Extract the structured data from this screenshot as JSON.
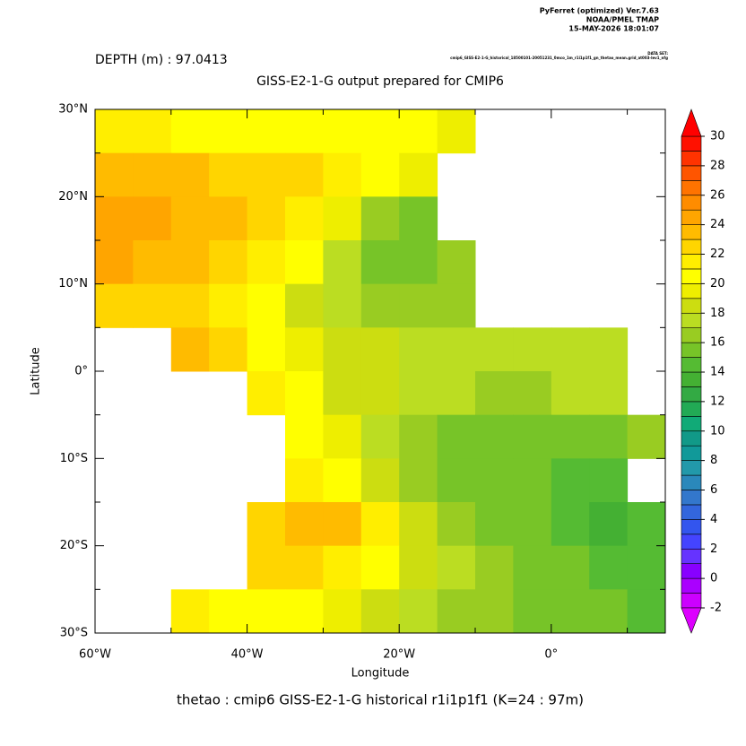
{
  "header": {
    "software": "PyFerret (optimized) Ver.7.63",
    "org": "NOAA/PMEL TMAP",
    "date": "15-MAY-2026 18:01:07",
    "depth": "DEPTH (m) : 97.0413",
    "dataset_label": "DATA SET:",
    "dataset": "cmip6_GISS-E2-1-G_historical_18500101-20051231_0mco_1m_r1i1p1f1_gn_thetao_mean.grid_at003-lev1_nfg"
  },
  "chart_data": {
    "type": "heatmap",
    "title": "GISS-E2-1-G output prepared for CMIP6",
    "xlabel": "Longitude",
    "ylabel": "Latitude",
    "footer": "thetao : cmip6 GISS-E2-1-G historical r1i1p1f1   (K=24 : 97m)",
    "xlim": [
      -60,
      15
    ],
    "ylim": [
      -30,
      30
    ],
    "xticks": [
      {
        "value": -60,
        "label": "60°W"
      },
      {
        "value": -40,
        "label": "40°W"
      },
      {
        "value": -20,
        "label": "20°W"
      },
      {
        "value": 0,
        "label": "0°"
      }
    ],
    "xminor": [
      -50,
      -30,
      -10,
      10
    ],
    "yticks": [
      {
        "value": 30,
        "label": "30°N"
      },
      {
        "value": 20,
        "label": "20°N"
      },
      {
        "value": 10,
        "label": "10°N"
      },
      {
        "value": 0,
        "label": "0°"
      },
      {
        "value": -10,
        "label": "10°S"
      },
      {
        "value": -20,
        "label": "20°S"
      },
      {
        "value": -30,
        "label": "30°S"
      }
    ],
    "yminor": [
      25,
      15,
      5,
      -5,
      -15,
      -25
    ],
    "lon_edges": [
      -60,
      -55,
      -50,
      -45,
      -40,
      -35,
      -30,
      -25,
      -20,
      -15,
      -10,
      -5,
      0,
      5,
      10,
      15
    ],
    "lat_edges": [
      30,
      25,
      20,
      15,
      10,
      5,
      0,
      -5,
      -10,
      -15,
      -20,
      -25,
      -30
    ],
    "values": [
      [
        21,
        21,
        20,
        20,
        20,
        20,
        20,
        20,
        20,
        19,
        null,
        null,
        null,
        null,
        null
      ],
      [
        23,
        23,
        23,
        22,
        22,
        22,
        21,
        20,
        19,
        null,
        null,
        null,
        null,
        null,
        null
      ],
      [
        24,
        24,
        23,
        23,
        22,
        21,
        19,
        16,
        15,
        null,
        null,
        null,
        null,
        null,
        null
      ],
      [
        24,
        23,
        23,
        22,
        21,
        20,
        17,
        15,
        15,
        16,
        null,
        null,
        null,
        null,
        null
      ],
      [
        22,
        22,
        22,
        21,
        20,
        18,
        17,
        16,
        16,
        16,
        null,
        null,
        null,
        null,
        null
      ],
      [
        null,
        null,
        23,
        22,
        20,
        19,
        18,
        18,
        17,
        17,
        17,
        17,
        17,
        17,
        null
      ],
      [
        null,
        null,
        null,
        null,
        21,
        20,
        18,
        18,
        17,
        17,
        16,
        16,
        17,
        17,
        null
      ],
      [
        null,
        null,
        null,
        null,
        null,
        20,
        19,
        17,
        16,
        15,
        15,
        15,
        15,
        15,
        16
      ],
      [
        null,
        null,
        null,
        null,
        null,
        21,
        20,
        18,
        16,
        15,
        15,
        15,
        14,
        14,
        null
      ],
      [
        null,
        null,
        null,
        null,
        22,
        23,
        23,
        21,
        18,
        16,
        15,
        15,
        14,
        13,
        14
      ],
      [
        null,
        null,
        null,
        null,
        22,
        22,
        21,
        20,
        18,
        17,
        16,
        15,
        15,
        14,
        14
      ],
      [
        null,
        null,
        21,
        20,
        20,
        20,
        19,
        18,
        17,
        16,
        16,
        15,
        15,
        15,
        14
      ]
    ],
    "clim": [
      -2,
      30
    ],
    "colorbar_ticks": [
      30,
      28,
      26,
      24,
      22,
      20,
      18,
      16,
      14,
      12,
      10,
      8,
      6,
      4,
      2,
      0,
      -2
    ],
    "colors": [
      "#cc00ff",
      "#aa00ff",
      "#8800ff",
      "#6633ff",
      "#4444ff",
      "#3355ee",
      "#3366dd",
      "#3377cc",
      "#2a88bb",
      "#2299aa",
      "#119999",
      "#119988",
      "#11aa77",
      "#22aa55",
      "#33aa44",
      "#44b033",
      "#55bb33",
      "#77c428",
      "#99cc22",
      "#bbdd22",
      "#ccdd11",
      "#eeee00",
      "#ffff00",
      "#ffee00",
      "#ffd500",
      "#ffbb00",
      "#ffa500",
      "#ff8c00",
      "#ff7300",
      "#ff5500",
      "#ff3300",
      "#ff1100"
    ],
    "over_color": "#ff0000",
    "under_color": "#dd00ff"
  }
}
